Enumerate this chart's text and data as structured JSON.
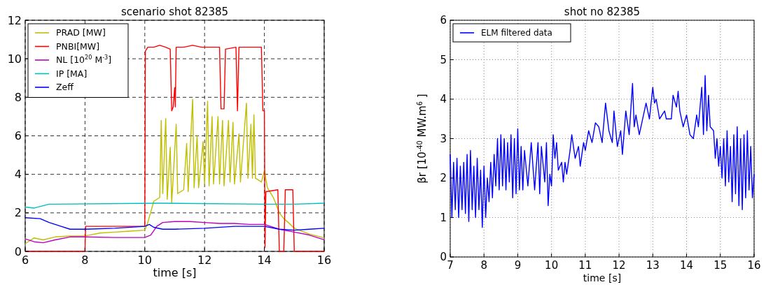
{
  "chart_data": [
    {
      "type": "line",
      "title": "scenario shot 82385",
      "xlabel": "time [s]",
      "xlim": [
        6,
        16
      ],
      "ylim": [
        0,
        12
      ],
      "xticks": [
        6,
        8,
        10,
        12,
        14,
        16
      ],
      "yticks": [
        0,
        2,
        4,
        6,
        8,
        10,
        12
      ],
      "grid": true,
      "legend": "top left",
      "series": [
        {
          "name": "PRAD [MW]",
          "color": "#bfbf00",
          "x": [
            6,
            6.3,
            6.6,
            7,
            7.5,
            8,
            8.5,
            9,
            9.5,
            10,
            10.1,
            10.3,
            10.5,
            10.55,
            10.6,
            10.7,
            10.75,
            10.85,
            10.9,
            11.05,
            11.1,
            11.3,
            11.4,
            11.45,
            11.6,
            11.65,
            11.75,
            11.8,
            11.95,
            12,
            12.1,
            12.15,
            12.25,
            12.3,
            12.45,
            12.5,
            12.6,
            12.65,
            12.8,
            12.85,
            12.95,
            13,
            13.15,
            13.2,
            13.4,
            13.45,
            13.55,
            13.6,
            13.65,
            13.7,
            13.9,
            14,
            14.1,
            14.3,
            14.5,
            14.65,
            14.8,
            15,
            15.5,
            16
          ],
          "values": [
            0.4,
            0.7,
            0.6,
            0.75,
            0.8,
            0.8,
            0.95,
            1.0,
            1.05,
            1.1,
            1.5,
            2.6,
            2.8,
            6.8,
            3.0,
            6.9,
            2.7,
            5.4,
            2.5,
            6.6,
            3.0,
            3.2,
            5.6,
            3.1,
            7.9,
            3.3,
            6.0,
            3.3,
            5.7,
            3.5,
            7.8,
            3.4,
            7.0,
            3.5,
            7.0,
            3.5,
            6.8,
            3.4,
            6.8,
            3.6,
            6.7,
            3.5,
            6.1,
            3.6,
            7.7,
            3.8,
            6.6,
            3.8,
            7.1,
            3.8,
            3.6,
            4.2,
            3.3,
            2.8,
            2.0,
            1.7,
            1.5,
            1.2,
            0.9,
            0.7
          ]
        },
        {
          "name": "PNBI[MW]",
          "color": "#ff0000",
          "x": [
            6,
            8,
            8.02,
            10,
            10.02,
            10.1,
            10.3,
            10.5,
            10.7,
            10.85,
            10.9,
            10.95,
            11,
            11.02,
            11.05,
            11.3,
            11.6,
            11.9,
            12.2,
            12.5,
            12.55,
            12.65,
            12.7,
            13.05,
            13.1,
            13.15,
            13.4,
            13.7,
            13.9,
            13.95,
            14,
            14.02,
            14.05,
            14.45,
            14.5,
            14.65,
            14.7,
            14.95,
            15,
            16
          ],
          "values": [
            0,
            0,
            1.3,
            1.3,
            10.4,
            10.6,
            10.6,
            10.7,
            10.6,
            10.5,
            7.3,
            7.5,
            8.5,
            7.5,
            10.6,
            10.6,
            10.7,
            10.6,
            10.6,
            10.6,
            7.4,
            7.4,
            10.5,
            10.6,
            7.3,
            10.6,
            10.6,
            10.6,
            10.6,
            7.3,
            7.3,
            0.2,
            3.1,
            3.2,
            0,
            0,
            3.2,
            3.2,
            0,
            0
          ]
        },
        {
          "name": "NL [10$^{20}$ M$^{-3}$]",
          "color": "#bf00bf",
          "x": [
            6,
            6.3,
            6.6,
            7,
            7.5,
            8,
            9,
            10,
            10.2,
            10.4,
            10.6,
            11,
            11.5,
            12,
            12.5,
            13,
            13.5,
            14,
            14.5,
            15,
            15.5,
            16
          ],
          "values": [
            0.65,
            0.5,
            0.45,
            0.6,
            0.75,
            0.75,
            0.72,
            0.72,
            0.85,
            1.3,
            1.5,
            1.55,
            1.55,
            1.5,
            1.45,
            1.45,
            1.4,
            1.4,
            1.15,
            1.0,
            0.85,
            0.6
          ]
        },
        {
          "name": "IP [MA]",
          "color": "#00bfbf",
          "x": [
            6,
            6.3,
            6.8,
            7,
            10.5,
            14,
            15,
            16
          ],
          "values": [
            2.3,
            2.25,
            2.45,
            2.45,
            2.5,
            2.45,
            2.45,
            2.5
          ]
        },
        {
          "name": "Zeff",
          "color": "#0000ff",
          "x": [
            6,
            6.5,
            6.8,
            7.2,
            7.5,
            8,
            9,
            10,
            10.15,
            10.3,
            10.6,
            11,
            12,
            13,
            14,
            14.5,
            15,
            15.5,
            16
          ],
          "values": [
            1.75,
            1.7,
            1.5,
            1.3,
            1.15,
            1.15,
            1.2,
            1.3,
            1.4,
            1.25,
            1.15,
            1.15,
            1.2,
            1.3,
            1.3,
            1.15,
            1.1,
            1.15,
            1.2
          ]
        }
      ]
    },
    {
      "type": "line",
      "title": "shot no 82385",
      "xlabel": "time [s]",
      "ylabel": "βr [10$^{-40}$ MW.m$^{6}$ ]",
      "xlim": [
        7,
        16
      ],
      "ylim": [
        0,
        6
      ],
      "xticks": [
        7,
        8,
        9,
        10,
        11,
        12,
        13,
        14,
        15,
        16
      ],
      "yticks": [
        0,
        1,
        2,
        3,
        4,
        5,
        6
      ],
      "grid": true,
      "legend": "top left",
      "series": [
        {
          "name": "ELM filtered data",
          "color": "#0000ff",
          "x": [
            7,
            7.05,
            7.1,
            7.15,
            7.2,
            7.25,
            7.3,
            7.35,
            7.4,
            7.45,
            7.5,
            7.55,
            7.6,
            7.65,
            7.7,
            7.75,
            7.8,
            7.85,
            7.9,
            7.95,
            8,
            8.05,
            8.1,
            8.15,
            8.2,
            8.25,
            8.3,
            8.35,
            8.4,
            8.45,
            8.5,
            8.55,
            8.6,
            8.65,
            8.7,
            8.75,
            8.8,
            8.85,
            8.9,
            8.95,
            9,
            9.05,
            9.1,
            9.15,
            9.2,
            9.3,
            9.4,
            9.5,
            9.6,
            9.65,
            9.7,
            9.8,
            9.85,
            9.9,
            9.95,
            10,
            10.05,
            10.1,
            10.15,
            10.2,
            10.3,
            10.35,
            10.4,
            10.45,
            10.55,
            10.6,
            10.7,
            10.8,
            10.85,
            10.95,
            11,
            11.1,
            11.2,
            11.3,
            11.4,
            11.5,
            11.6,
            11.7,
            11.8,
            11.85,
            11.95,
            12.05,
            12.1,
            12.2,
            12.3,
            12.4,
            12.45,
            12.5,
            12.6,
            12.8,
            12.9,
            13,
            13.05,
            13.1,
            13.2,
            13.35,
            13.4,
            13.55,
            13.6,
            13.7,
            13.75,
            13.8,
            13.9,
            14,
            14.1,
            14.2,
            14.3,
            14.35,
            14.45,
            14.5,
            14.55,
            14.6,
            14.65,
            14.7,
            14.8,
            14.85,
            14.9,
            14.95,
            15,
            15.05,
            15.1,
            15.15,
            15.2,
            15.25,
            15.3,
            15.35,
            15.4,
            15.45,
            15.5,
            15.55,
            15.6,
            15.65,
            15.7,
            15.75,
            15.8,
            15.85,
            15.9,
            15.95,
            16
          ],
          "values": [
            2.6,
            1.0,
            2.4,
            1.2,
            2.5,
            1.0,
            2.3,
            1.2,
            2.4,
            1.1,
            2.6,
            0.9,
            2.7,
            1.2,
            2.3,
            1.0,
            2.5,
            1.2,
            2.2,
            0.75,
            2.3,
            1.0,
            2.0,
            1.4,
            2.4,
            1.5,
            2.6,
            1.8,
            3.0,
            1.7,
            3.1,
            1.8,
            3.0,
            1.7,
            2.9,
            1.9,
            3.1,
            1.5,
            3.0,
            1.6,
            3.25,
            1.7,
            2.8,
            1.7,
            2.7,
            1.8,
            2.9,
            1.7,
            2.9,
            1.6,
            2.8,
            1.9,
            2.9,
            1.3,
            2.1,
            1.8,
            3.1,
            2.5,
            2.9,
            2.2,
            2.4,
            1.9,
            2.4,
            2.1,
            2.7,
            3.1,
            2.5,
            2.8,
            2.3,
            2.9,
            2.7,
            3.2,
            2.9,
            3.4,
            3.3,
            2.9,
            3.9,
            3.2,
            2.9,
            3.7,
            2.8,
            3.2,
            2.6,
            3.7,
            3.1,
            4.4,
            3.3,
            3.6,
            3.1,
            3.9,
            3.5,
            4.3,
            3.9,
            4.0,
            3.5,
            3.7,
            3.5,
            3.5,
            4.1,
            3.8,
            4.2,
            3.7,
            3.3,
            3.6,
            3.1,
            3.0,
            3.6,
            3.3,
            4.3,
            3.1,
            4.6,
            3.2,
            4.1,
            3.3,
            3.2,
            2.5,
            3.0,
            2.3,
            2.8,
            2.0,
            3.0,
            1.8,
            3.2,
            1.9,
            2.8,
            1.4,
            3.1,
            1.6,
            3.3,
            1.3,
            3.0,
            1.2,
            3.1,
            1.5,
            3.2,
            1.7,
            2.8,
            1.5,
            2.1
          ]
        }
      ]
    }
  ]
}
